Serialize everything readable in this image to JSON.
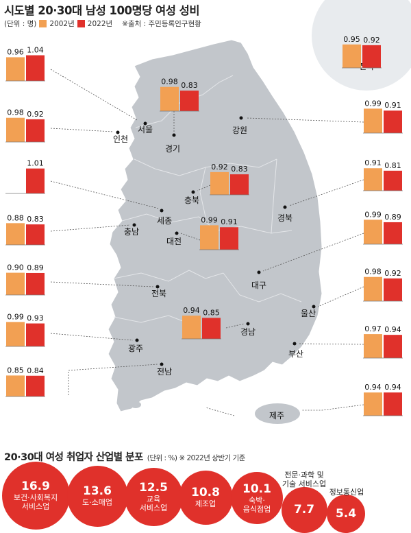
{
  "title": "시도별 20·30대 남성 100명당 여성 성비",
  "legend": {
    "unit": "(단위 : 명)",
    "series1": "2002년",
    "series2": "2022년",
    "source": "※출처 : 주민등록인구현황"
  },
  "colors": {
    "y2002": "#f2a053",
    "y2022": "#e0312b",
    "map": "#c2c6cb",
    "circle": "#e8ebee"
  },
  "chart_data": [
    {
      "type": "bar",
      "title": "시도별 20·30대 남성 100명당 여성 성비",
      "unit": "명",
      "series": [
        {
          "name": "2002년"
        },
        {
          "name": "2022년"
        }
      ],
      "regions": [
        {
          "name": "전국",
          "v2002": 0.95,
          "v2022": 0.92
        },
        {
          "name": "서울",
          "v2002": 0.96,
          "v2022": 1.04
        },
        {
          "name": "인천",
          "v2002": 0.98,
          "v2022": 0.92
        },
        {
          "name": "세종",
          "v2002": null,
          "v2022": 1.01
        },
        {
          "name": "충남",
          "v2002": 0.88,
          "v2022": 0.83
        },
        {
          "name": "전북",
          "v2002": 0.9,
          "v2022": 0.89
        },
        {
          "name": "광주",
          "v2002": 0.99,
          "v2022": 0.93
        },
        {
          "name": "전남",
          "v2002": 0.85,
          "v2022": 0.84
        },
        {
          "name": "경기",
          "v2002": 0.98,
          "v2022": 0.83
        },
        {
          "name": "충북",
          "v2002": 0.92,
          "v2022": 0.83
        },
        {
          "name": "대전",
          "v2002": 0.99,
          "v2022": 0.91
        },
        {
          "name": "경남",
          "v2002": 0.94,
          "v2022": 0.85
        },
        {
          "name": "강원",
          "v2002": 0.99,
          "v2022": 0.91
        },
        {
          "name": "경북",
          "v2002": 0.91,
          "v2022": 0.81
        },
        {
          "name": "대구",
          "v2002": 0.99,
          "v2022": 0.89
        },
        {
          "name": "울산",
          "v2002": 0.98,
          "v2022": 0.92
        },
        {
          "name": "부산",
          "v2002": 0.97,
          "v2022": 0.94
        },
        {
          "name": "제주",
          "v2002": 0.94,
          "v2022": 0.94
        }
      ]
    },
    {
      "type": "bubble",
      "title": "20·30대 여성 취업자 산업별 분포",
      "unit": "%",
      "note": "※ 2022년 상반기 기준",
      "categories": [
        "보건·사회복지\n서비스업",
        "도·소매업",
        "교육\n서비스업",
        "제조업",
        "숙박·\n음식점업",
        "전문·과학 및\n기술 서비스업",
        "정보통신업"
      ],
      "values": [
        16.9,
        13.6,
        12.5,
        10.8,
        10.1,
        7.7,
        5.4
      ]
    }
  ],
  "section2": {
    "title": "20·30대 여성 취업자 산업별 분포",
    "subtitle": "(단위 : %) ※ 2022년 상반기 기준"
  }
}
